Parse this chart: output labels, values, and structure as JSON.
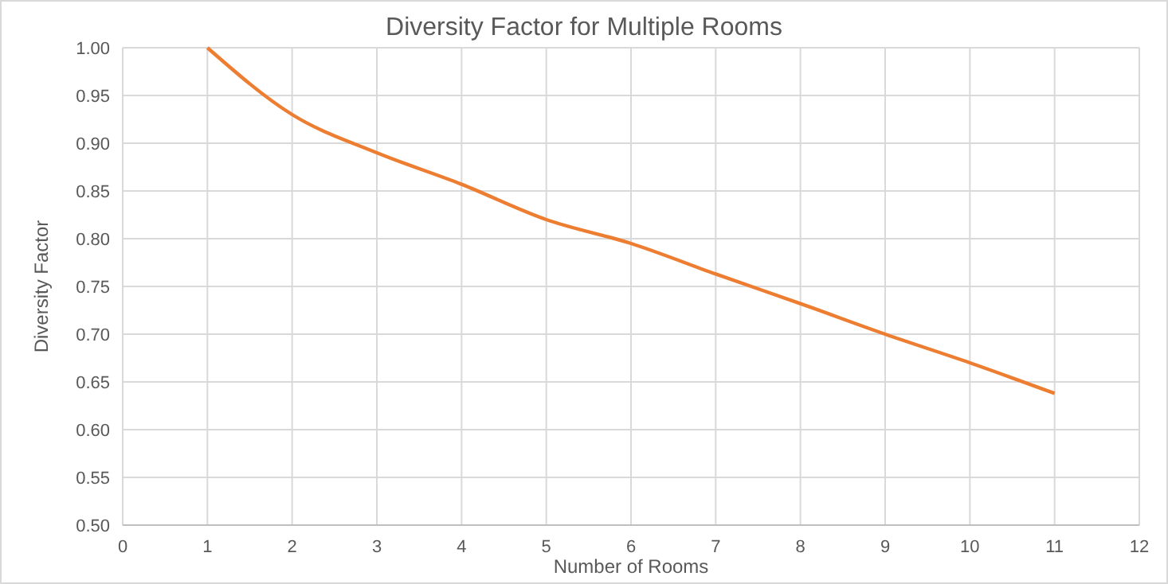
{
  "chart_data": {
    "type": "line",
    "title": "Diversity Factor for Multiple Rooms",
    "xlabel": "Number of Rooms",
    "ylabel": "Diversity Factor",
    "x": [
      1,
      2,
      3,
      4,
      5,
      6,
      7,
      8,
      9,
      10,
      11
    ],
    "series": [
      {
        "color": "#ed7d31",
        "values": [
          1.0,
          0.93,
          0.89,
          0.857,
          0.82,
          0.795,
          0.763,
          0.732,
          0.7,
          0.67,
          0.638
        ]
      }
    ],
    "xlim": [
      0,
      12
    ],
    "xticks": [
      0,
      1,
      2,
      3,
      4,
      5,
      6,
      7,
      8,
      9,
      10,
      11,
      12
    ],
    "ylim": [
      0.5,
      1.0
    ],
    "yticks": [
      {
        "value": 0.5,
        "label": "0.50"
      },
      {
        "value": 0.55,
        "label": "0.55"
      },
      {
        "value": 0.6,
        "label": "0.60"
      },
      {
        "value": 0.65,
        "label": "0.65"
      },
      {
        "value": 0.7,
        "label": "0.70"
      },
      {
        "value": 0.75,
        "label": "0.75"
      },
      {
        "value": 0.8,
        "label": "0.80"
      },
      {
        "value": 0.85,
        "label": "0.85"
      },
      {
        "value": 0.9,
        "label": "0.90"
      },
      {
        "value": 0.95,
        "label": "0.95"
      },
      {
        "value": 1.0,
        "label": "1.00"
      }
    ],
    "grid": true,
    "marker": "none",
    "line_style": "solid"
  }
}
